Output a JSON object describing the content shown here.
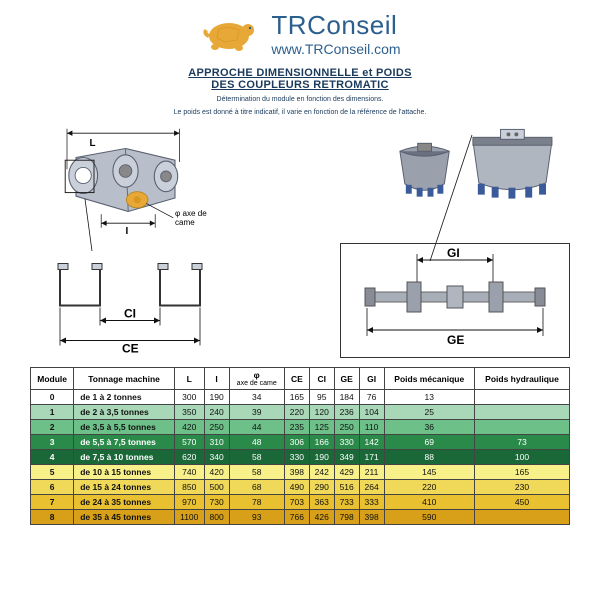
{
  "brand": {
    "name": "TRConseil",
    "url": "www.TRConseil.com",
    "logo_color": "#e8a838",
    "text_color": "#2b5f8e"
  },
  "title": {
    "line1": "APPROCHE DIMENSIONNELLE et POIDS",
    "line2": "DES COUPLEURS RETROMATIC",
    "sub1": "Détermination du module en fonction des dimensions.",
    "sub2": "Le poids est donné à titre indicatif, il varie en fonction de la référence de l'attache."
  },
  "diagram_labels": {
    "L": "L",
    "I": "I",
    "cam_axis": "φ axe de came",
    "CI": "CI",
    "CE": "CE",
    "GI": "GI",
    "GE": "GE"
  },
  "table": {
    "headers": {
      "module": "Module",
      "tonnage": "Tonnage machine",
      "L": "L",
      "I": "I",
      "cam": "φ",
      "cam_sub": "axe de came",
      "CE": "CE",
      "CI": "CI",
      "GE": "GE",
      "GI": "GI",
      "poids_mec": "Poids mécanique",
      "poids_hyd": "Poids hydraulique"
    },
    "rows": [
      {
        "module": "0",
        "tonnage": "de 1 à 2 tonnes",
        "L": "300",
        "I": "190",
        "cam": "34",
        "CE": "165",
        "CI": "95",
        "GE": "184",
        "GI": "76",
        "pm": "13",
        "ph": "",
        "bg": "#ffffff"
      },
      {
        "module": "1",
        "tonnage": "de 2 à 3,5 tonnes",
        "L": "350",
        "I": "240",
        "cam": "39",
        "CE": "220",
        "CI": "120",
        "GE": "236",
        "GI": "104",
        "pm": "25",
        "ph": "",
        "bg": "#a8d8b8"
      },
      {
        "module": "2",
        "tonnage": "de 3,5 à 5,5 tonnes",
        "L": "420",
        "I": "250",
        "cam": "44",
        "CE": "235",
        "CI": "125",
        "GE": "250",
        "GI": "110",
        "pm": "36",
        "ph": "",
        "bg": "#6cc088"
      },
      {
        "module": "3",
        "tonnage": "de 5,5 à 7,5 tonnes",
        "L": "570",
        "I": "310",
        "cam": "48",
        "CE": "306",
        "CI": "166",
        "GE": "330",
        "GI": "142",
        "pm": "69",
        "ph": "73",
        "bg": "#2a8a4a"
      },
      {
        "module": "4",
        "tonnage": "de 7,5 à 10 tonnes",
        "L": "620",
        "I": "340",
        "cam": "58",
        "CE": "330",
        "CI": "190",
        "GE": "349",
        "GI": "171",
        "pm": "88",
        "ph": "100",
        "bg": "#1a6838"
      },
      {
        "module": "5",
        "tonnage": "de 10 à 15 tonnes",
        "L": "740",
        "I": "420",
        "cam": "58",
        "CE": "398",
        "CI": "242",
        "GE": "429",
        "GI": "211",
        "pm": "145",
        "ph": "165",
        "bg": "#f8f088"
      },
      {
        "module": "6",
        "tonnage": "de 15 à 24 tonnes",
        "L": "850",
        "I": "500",
        "cam": "68",
        "CE": "490",
        "CI": "290",
        "GE": "516",
        "GI": "264",
        "pm": "220",
        "ph": "230",
        "bg": "#f0d858"
      },
      {
        "module": "7",
        "tonnage": "de 24 à 35 tonnes",
        "L": "970",
        "I": "730",
        "cam": "78",
        "CE": "703",
        "CI": "363",
        "GE": "733",
        "GI": "333",
        "pm": "410",
        "ph": "450",
        "bg": "#e8c030"
      },
      {
        "module": "8",
        "tonnage": "de 35 à 45 tonnes",
        "L": "1100",
        "I": "800",
        "cam": "93",
        "CE": "766",
        "CI": "426",
        "GE": "798",
        "GI": "398",
        "pm": "590",
        "ph": "",
        "bg": "#d8a018"
      }
    ],
    "text_colors": {
      "dark": "#111111",
      "light": "#ffffff"
    },
    "light_text_rows": [
      3,
      4
    ]
  },
  "colors": {
    "coupler_body": "#b8beca",
    "coupler_edge": "#5a6070",
    "cam_color": "#e8a838",
    "bucket_body": "#9aa0ac",
    "bucket_dark": "#6a7080",
    "bucket_teeth": "#3a5a9a",
    "roller_body": "#888c96"
  }
}
